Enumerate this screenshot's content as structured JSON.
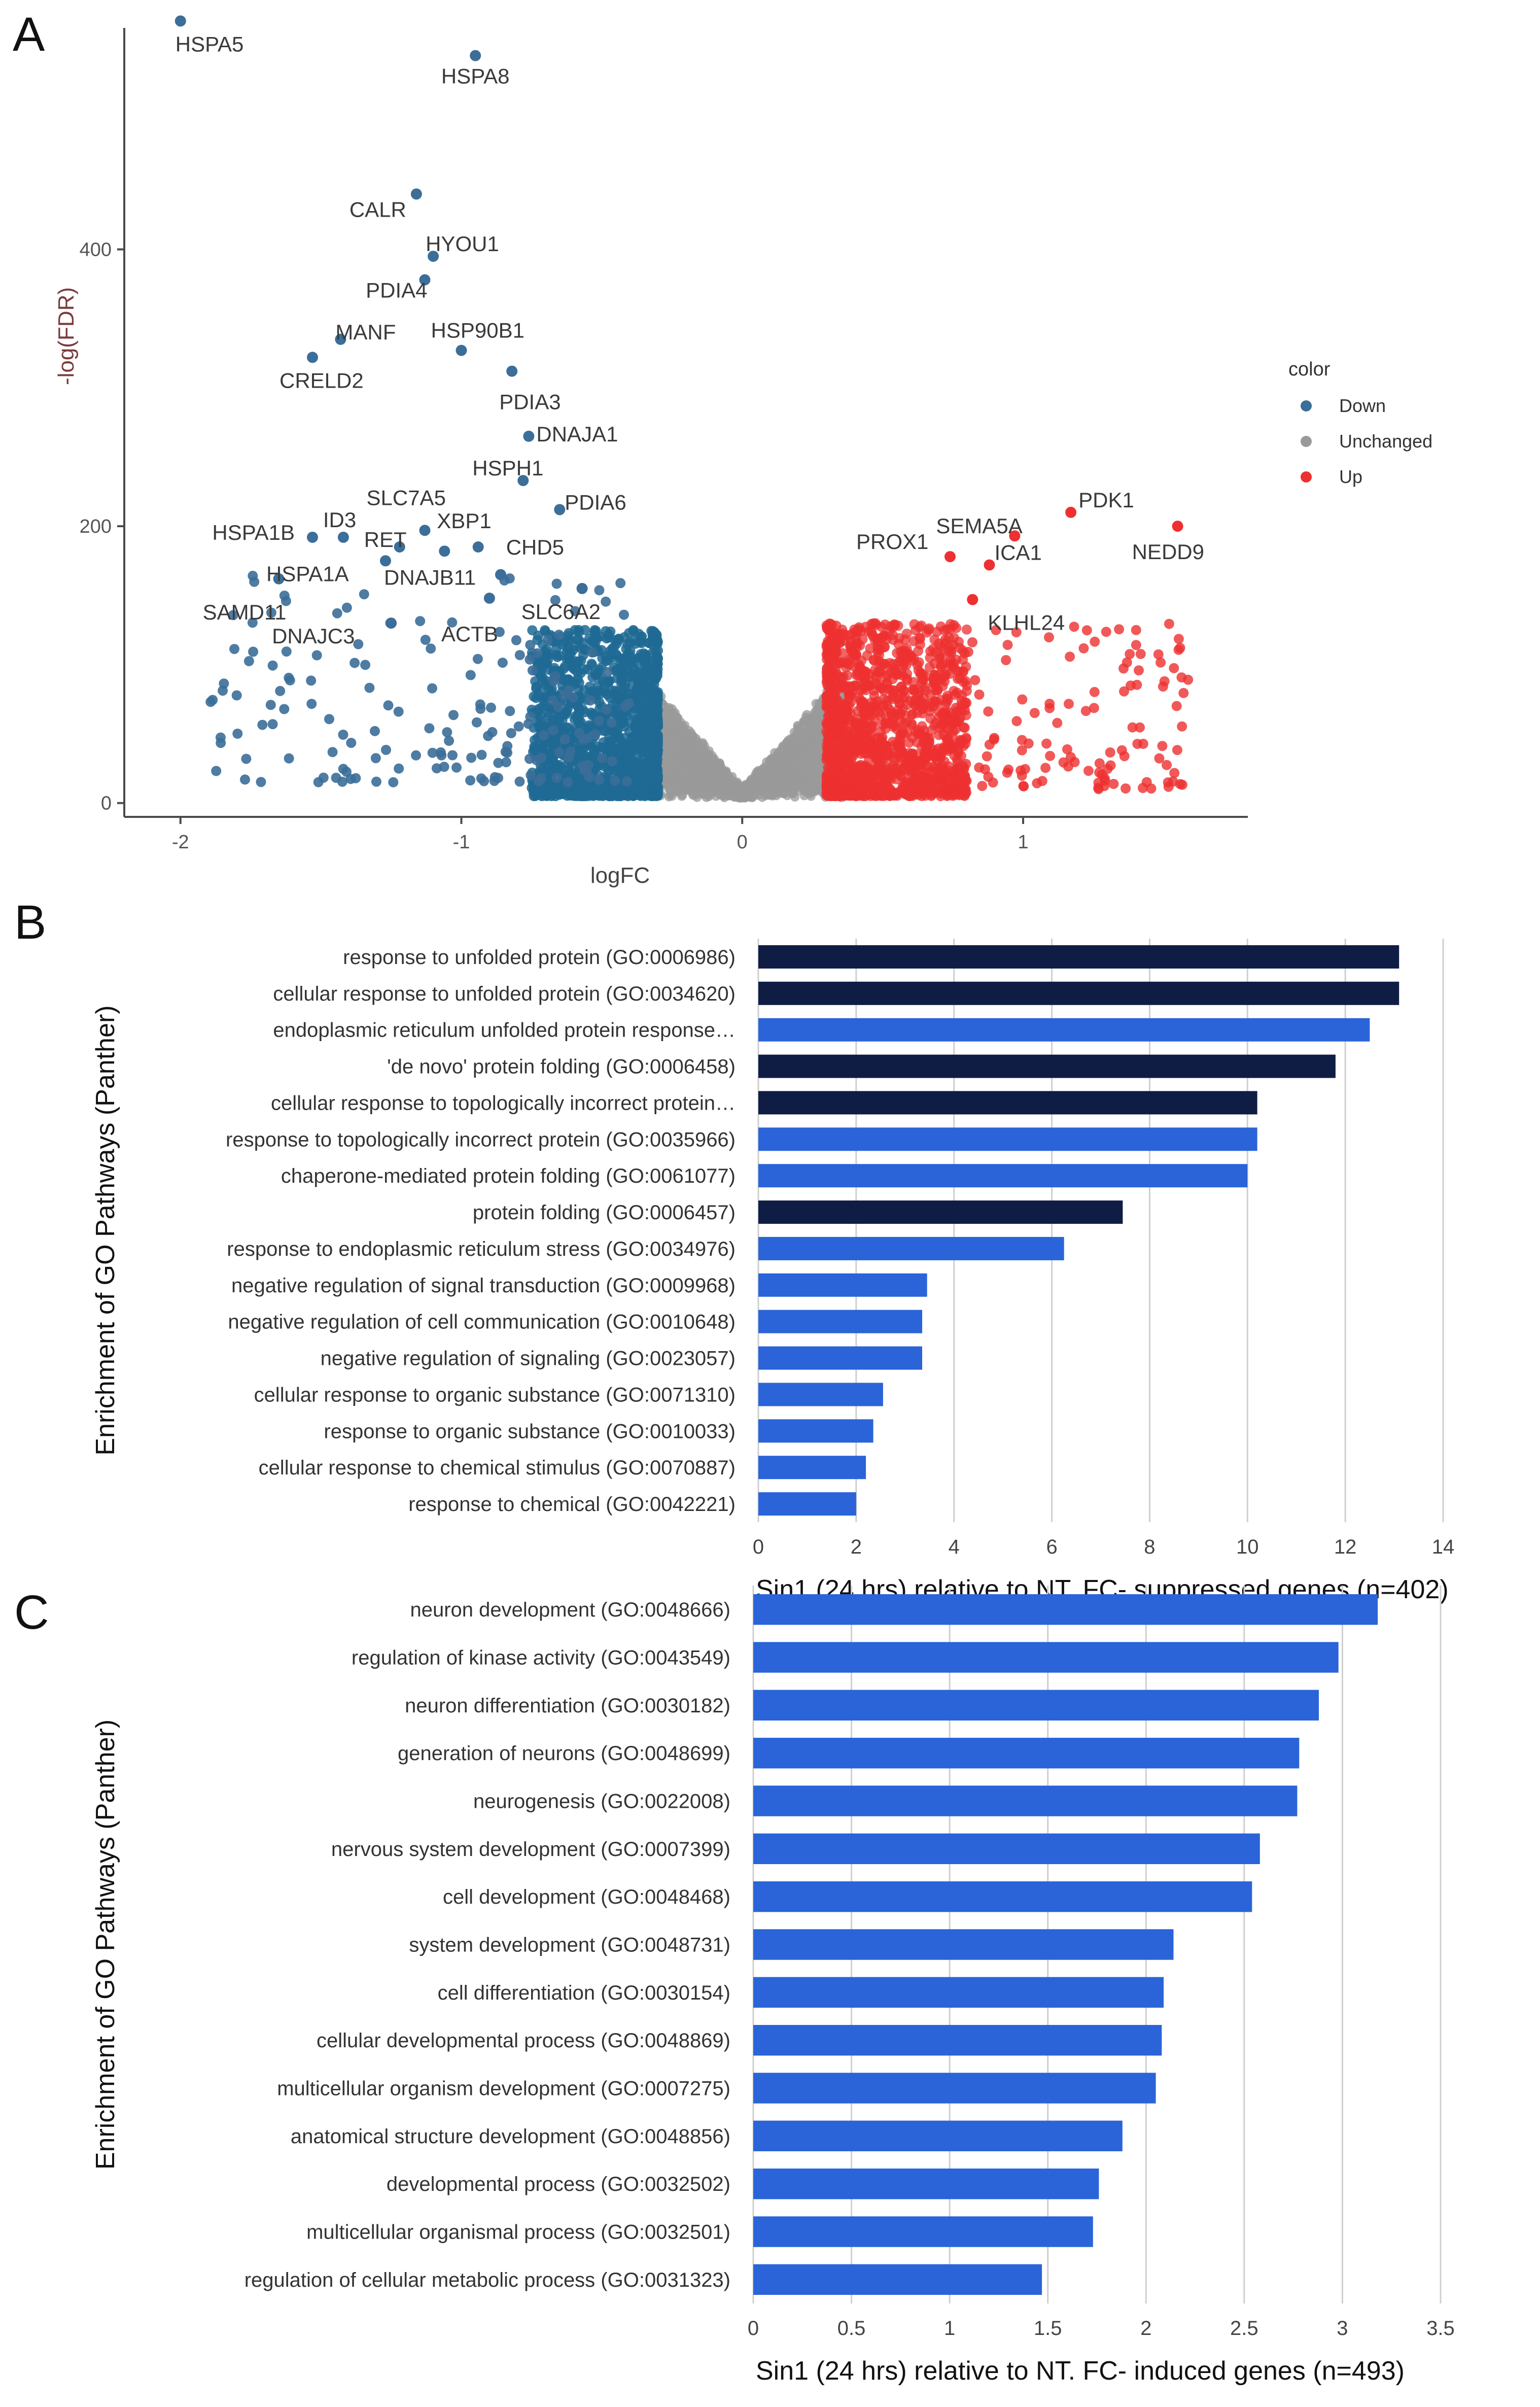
{
  "figure": {
    "panel_labels": [
      "A",
      "B",
      "C"
    ]
  },
  "chart_data": [
    {
      "panel": "A",
      "type": "scatter",
      "xlabel": "logFC",
      "ylabel": "-log(FDR)",
      "xlim": [
        -2.2,
        1.8
      ],
      "ylim": [
        -10,
        560
      ],
      "xticks": [
        -2,
        -1,
        0,
        1
      ],
      "yticks": [
        0,
        200,
        400
      ],
      "grid": false,
      "legend": {
        "title": "color",
        "position": "right",
        "entries": [
          {
            "label": "Down",
            "color": "#3b6e98"
          },
          {
            "label": "Unchanged",
            "color": "#9a9a9a"
          },
          {
            "label": "Up",
            "color": "#ee3030"
          }
        ]
      },
      "labeled_points": [
        {
          "gene": "HSPA5",
          "x": -2.0,
          "y": 565,
          "group": "Down"
        },
        {
          "gene": "HSPA8",
          "x": -0.95,
          "y": 540,
          "group": "Down"
        },
        {
          "gene": "CALR",
          "x": -1.16,
          "y": 440,
          "group": "Down"
        },
        {
          "gene": "HYOU1",
          "x": -1.1,
          "y": 395,
          "group": "Down"
        },
        {
          "gene": "PDIA4",
          "x": -1.13,
          "y": 378,
          "group": "Down"
        },
        {
          "gene": "MANF",
          "x": -1.43,
          "y": 335,
          "group": "Down"
        },
        {
          "gene": "HSP90B1",
          "x": -1.0,
          "y": 327,
          "group": "Down"
        },
        {
          "gene": "CRELD2",
          "x": -1.53,
          "y": 322,
          "group": "Down"
        },
        {
          "gene": "PDIA3",
          "x": -0.82,
          "y": 312,
          "group": "Down"
        },
        {
          "gene": "DNAJA1",
          "x": -0.76,
          "y": 265,
          "group": "Down"
        },
        {
          "gene": "HSPH1",
          "x": -0.78,
          "y": 233,
          "group": "Down"
        },
        {
          "gene": "PDIA6",
          "x": -0.65,
          "y": 212,
          "group": "Down"
        },
        {
          "gene": "SLC7A5",
          "x": -1.13,
          "y": 197,
          "group": "Down"
        },
        {
          "gene": "XBP1",
          "x": -1.06,
          "y": 182,
          "group": "Down"
        },
        {
          "gene": "RET",
          "x": -1.22,
          "y": 185,
          "group": "Down"
        },
        {
          "gene": "ID3",
          "x": -1.42,
          "y": 192,
          "group": "Down"
        },
        {
          "gene": "HSPA1B",
          "x": -1.53,
          "y": 192,
          "group": "Down"
        },
        {
          "gene": "CHD5",
          "x": -0.94,
          "y": 185,
          "group": "Down"
        },
        {
          "gene": "HSPA1A",
          "x": -1.27,
          "y": 175,
          "group": "Down"
        },
        {
          "gene": "SAMD11",
          "x": -1.65,
          "y": 162,
          "group": "Down"
        },
        {
          "gene": "DNAJB11",
          "x": -0.86,
          "y": 165,
          "group": "Down"
        },
        {
          "gene": "SLC6A2",
          "x": -0.57,
          "y": 155,
          "group": "Down"
        },
        {
          "gene": "DNAJC3",
          "x": -1.25,
          "y": 130,
          "group": "Down"
        },
        {
          "gene": "ACTB",
          "x": -0.9,
          "y": 148,
          "group": "Down"
        },
        {
          "gene": "PDK1",
          "x": 1.17,
          "y": 210,
          "group": "Up"
        },
        {
          "gene": "SEMA5A",
          "x": 0.97,
          "y": 193,
          "group": "Up"
        },
        {
          "gene": "NEDD9",
          "x": 1.55,
          "y": 200,
          "group": "Up"
        },
        {
          "gene": "PROX1",
          "x": 0.74,
          "y": 178,
          "group": "Up"
        },
        {
          "gene": "ICA1",
          "x": 0.88,
          "y": 172,
          "group": "Up"
        },
        {
          "gene": "KLHL24",
          "x": 0.82,
          "y": 147,
          "group": "Up"
        }
      ]
    },
    {
      "panel": "B",
      "type": "bar",
      "orientation": "horizontal",
      "ylabel": "Enrichment of GO Pathways (Panther)",
      "xlabel": "Sin1 (24 hrs) relative to NT.  FC- suppressed genes (n=402)",
      "xlim": [
        0,
        14
      ],
      "xticks": [
        0,
        2,
        4,
        6,
        8,
        10,
        12,
        14
      ],
      "grid": true,
      "categories": [
        "response to unfolded protein (GO:0006986)",
        "cellular response to unfolded protein (GO:0034620)",
        "endoplasmic reticulum unfolded protein response…",
        "'de novo' protein folding (GO:0006458)",
        "cellular response to topologically incorrect protein…",
        "response to topologically incorrect protein (GO:0035966)",
        "chaperone-mediated protein folding (GO:0061077)",
        "protein folding (GO:0006457)",
        "response to endoplasmic reticulum stress (GO:0034976)",
        "negative regulation of signal transduction (GO:0009968)",
        "negative regulation of cell communication (GO:0010648)",
        "negative regulation of signaling (GO:0023057)",
        "cellular response to organic substance (GO:0071310)",
        "response to organic substance (GO:0010033)",
        "cellular response to chemical stimulus (GO:0070887)",
        "response to chemical (GO:0042221)"
      ],
      "values": [
        13.1,
        13.1,
        12.5,
        11.8,
        10.2,
        10.2,
        10.0,
        7.45,
        6.25,
        3.45,
        3.35,
        3.35,
        2.55,
        2.35,
        2.2,
        2.0
      ],
      "colors": [
        "#0f1d45",
        "#0f1d45",
        "#2a64d8",
        "#0f1d45",
        "#0f1d45",
        "#2a64d8",
        "#2a64d8",
        "#0f1d45",
        "#2a64d8",
        "#2a64d8",
        "#2a64d8",
        "#2a64d8",
        "#2a64d8",
        "#2a64d8",
        "#2a64d8",
        "#2a64d8"
      ]
    },
    {
      "panel": "C",
      "type": "bar",
      "orientation": "horizontal",
      "ylabel": "Enrichment of GO Pathways (Panther)",
      "xlabel": "Sin1 (24 hrs) relative to NT.  FC- induced genes (n=493)",
      "xlim": [
        0,
        3.5
      ],
      "xticks": [
        0,
        0.5,
        1,
        1.5,
        2,
        2.5,
        3,
        3.5
      ],
      "grid": true,
      "categories": [
        "neuron development (GO:0048666)",
        "regulation of kinase activity (GO:0043549)",
        "neuron differentiation (GO:0030182)",
        "generation of neurons (GO:0048699)",
        "neurogenesis (GO:0022008)",
        "nervous system development (GO:0007399)",
        "cell development (GO:0048468)",
        "system development (GO:0048731)",
        "cell differentiation (GO:0030154)",
        "cellular developmental process (GO:0048869)",
        "multicellular organism development (GO:0007275)",
        "anatomical structure development (GO:0048856)",
        "developmental process (GO:0032502)",
        "multicellular organismal process (GO:0032501)",
        "regulation of cellular metabolic process (GO:0031323)"
      ],
      "values": [
        3.18,
        2.98,
        2.88,
        2.78,
        2.77,
        2.58,
        2.54,
        2.14,
        2.09,
        2.08,
        2.05,
        1.88,
        1.76,
        1.73,
        1.47
      ],
      "colors": [
        "#2a64d8",
        "#2a64d8",
        "#2a64d8",
        "#2a64d8",
        "#2a64d8",
        "#2a64d8",
        "#2a64d8",
        "#2a64d8",
        "#2a64d8",
        "#2a64d8",
        "#2a64d8",
        "#2a64d8",
        "#2a64d8",
        "#2a64d8",
        "#2a64d8"
      ]
    }
  ]
}
